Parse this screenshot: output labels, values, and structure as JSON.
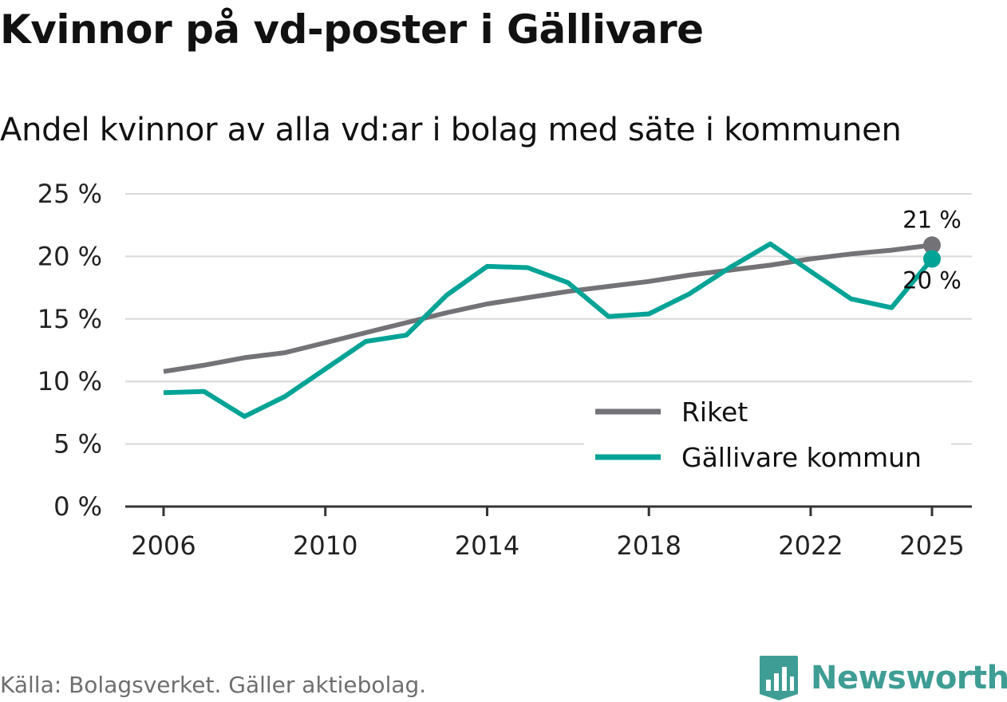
{
  "chart_data": {
    "type": "line",
    "title": "Kvinnor på vd-poster i Gällivare",
    "subtitle": "Andel kvinnor av alla vd:ar i bolag med säte i kommunen",
    "xlabel": "",
    "ylabel": "",
    "ylim": [
      0,
      25
    ],
    "yticks": [
      0,
      5,
      10,
      15,
      20,
      25
    ],
    "ytick_labels": [
      "0 %",
      "5 %",
      "10 %",
      "15 %",
      "20 %",
      "25 %"
    ],
    "xlim": [
      2006,
      2025
    ],
    "xticks": [
      2006,
      2010,
      2014,
      2018,
      2022,
      2025
    ],
    "xtick_labels": [
      "2006",
      "2010",
      "2014",
      "2018",
      "2022",
      "2025"
    ],
    "grid": true,
    "legend_position": "bottom-right",
    "x": [
      2006,
      2007,
      2008,
      2009,
      2010,
      2011,
      2012,
      2013,
      2014,
      2015,
      2016,
      2017,
      2018,
      2019,
      2020,
      2021,
      2022,
      2023,
      2024,
      2025
    ],
    "series": [
      {
        "name": "Riket",
        "color": "#737277",
        "values": [
          10.8,
          11.3,
          11.9,
          12.3,
          13.1,
          13.9,
          14.7,
          15.5,
          16.2,
          16.7,
          17.2,
          17.6,
          18.0,
          18.5,
          18.9,
          19.3,
          19.8,
          20.2,
          20.5,
          20.9
        ],
        "end_label": "21 %"
      },
      {
        "name": "Gällivare kommun",
        "color": "#00a396",
        "values": [
          9.1,
          9.2,
          7.2,
          8.8,
          11.0,
          13.2,
          13.7,
          16.9,
          19.2,
          19.1,
          17.9,
          15.2,
          15.4,
          17.0,
          19.1,
          21.0,
          18.8,
          16.6,
          15.9,
          19.8
        ],
        "end_label": "20 %"
      }
    ],
    "source": "Källa: Bolagsverket. Gäller aktiebolag."
  },
  "brand": {
    "name": "Newsworthy",
    "logo_icon": "newsworthy-logo-icon",
    "color": "#3e9d94"
  }
}
